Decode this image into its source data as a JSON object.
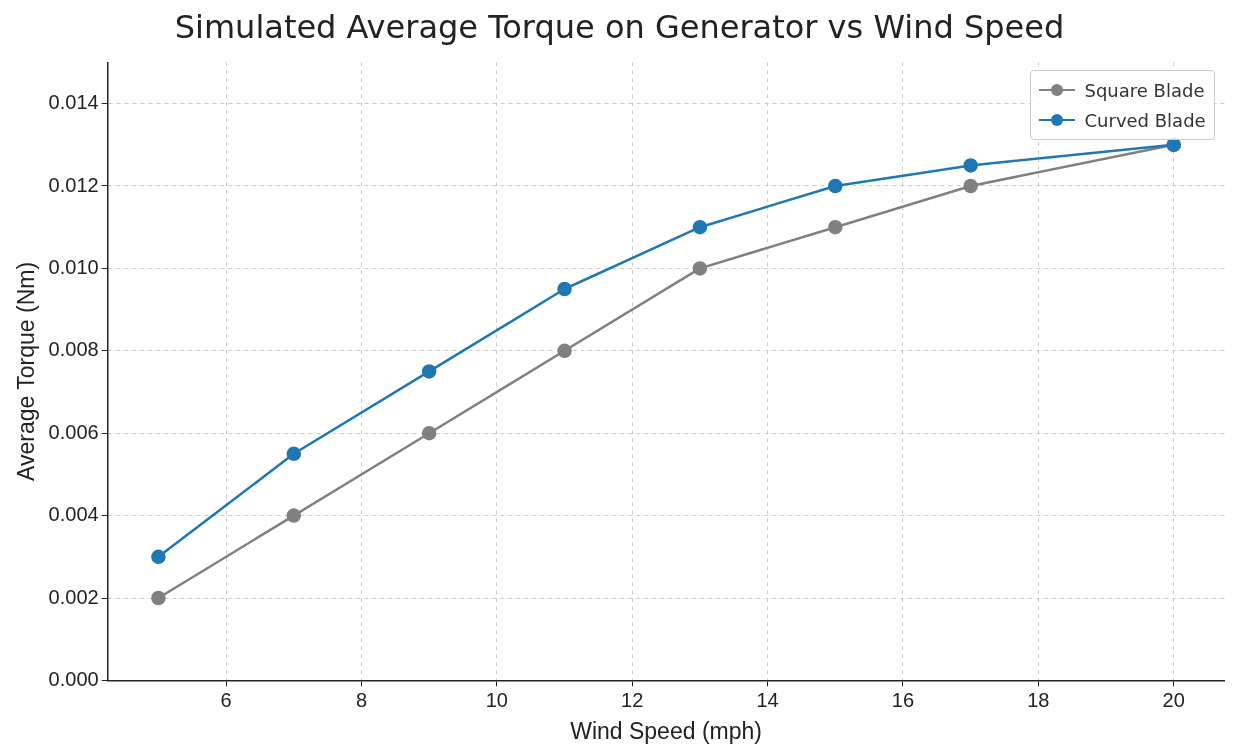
{
  "chart_data": {
    "type": "line",
    "title": "Simulated Average Torque on Generator vs Wind Speed",
    "xlabel": "Wind Speed (mph)",
    "ylabel": "Average Torque (Nm)",
    "x": [
      5,
      7,
      9,
      11,
      13,
      15,
      17,
      20
    ],
    "series": [
      {
        "name": "Square Blade",
        "color": "#808080",
        "values": [
          0.002,
          0.004,
          0.006,
          0.008,
          0.01,
          0.011,
          0.012,
          0.013
        ]
      },
      {
        "name": "Curved Blade",
        "color": "#1f77b4",
        "values": [
          0.003,
          0.0055,
          0.0075,
          0.0095,
          0.011,
          0.012,
          0.0125,
          0.013
        ]
      }
    ],
    "xlim": [
      4.25,
      20.75
    ],
    "xticks": [
      6,
      8,
      10,
      12,
      14,
      16,
      18,
      20
    ],
    "ylim": [
      0,
      0.015
    ],
    "yticks": [
      {
        "value": 0,
        "label": "0.000"
      },
      {
        "value": 0.002,
        "label": "0.002"
      },
      {
        "value": 0.004,
        "label": "0.004"
      },
      {
        "value": 0.006,
        "label": "0.006"
      },
      {
        "value": 0.008,
        "label": "0.008"
      },
      {
        "value": 0.01,
        "label": "0.010"
      },
      {
        "value": 0.012,
        "label": "0.012"
      },
      {
        "value": 0.014,
        "label": "0.014"
      }
    ],
    "grid": true,
    "legend": "top right",
    "marker": "circle",
    "line_style": "solid"
  }
}
